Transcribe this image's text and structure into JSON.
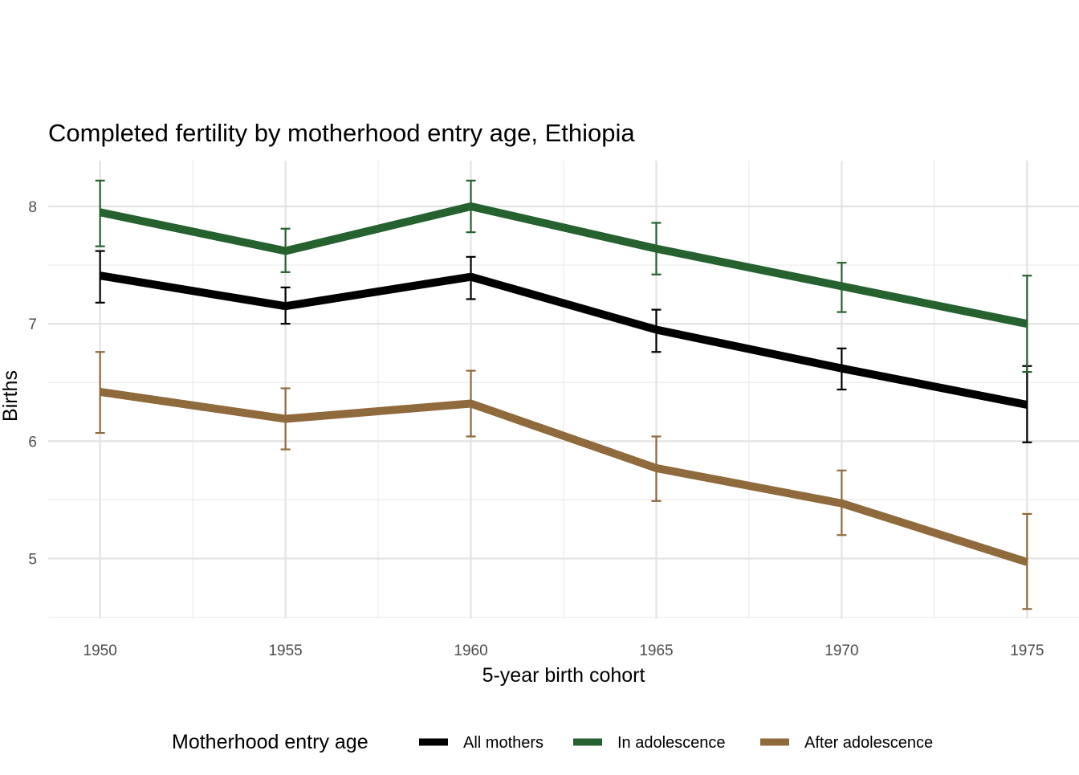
{
  "chart_data": {
    "type": "line",
    "title": "Completed fertility by motherhood entry age,  Ethiopia",
    "xlabel": "5-year birth cohort",
    "ylabel": "Births",
    "x": [
      1950,
      1955,
      1960,
      1965,
      1970,
      1975
    ],
    "x_ticks": [
      "1950",
      "1955",
      "1960",
      "1965",
      "1970",
      "1975"
    ],
    "y_ticks": [
      "5",
      "6",
      "7",
      "8"
    ],
    "xlim": [
      1948.6,
      1976.4
    ],
    "ylim": [
      4.49,
      8.39
    ],
    "grid": true,
    "legend": {
      "title": "Motherhood entry age",
      "position": "bottom"
    },
    "series": [
      {
        "name": "All mothers",
        "color": "#000000",
        "values": [
          7.41,
          7.15,
          7.4,
          6.95,
          6.62,
          6.31
        ],
        "lower": [
          7.18,
          7.0,
          7.21,
          6.76,
          6.44,
          5.99
        ],
        "upper": [
          7.62,
          7.31,
          7.57,
          7.12,
          6.79,
          6.64
        ]
      },
      {
        "name": "In adolescence",
        "color": "#26622f",
        "values": [
          7.95,
          7.62,
          8.0,
          7.64,
          7.32,
          7.0
        ],
        "lower": [
          7.66,
          7.44,
          7.78,
          7.42,
          7.1,
          6.59
        ],
        "upper": [
          8.22,
          7.81,
          8.22,
          7.86,
          7.52,
          7.41
        ]
      },
      {
        "name": "After adolescence",
        "color": "#8f6a3c",
        "values": [
          6.42,
          6.19,
          6.32,
          5.77,
          5.47,
          4.97
        ],
        "lower": [
          6.07,
          5.93,
          6.04,
          5.49,
          5.2,
          4.57
        ],
        "upper": [
          6.76,
          6.45,
          6.6,
          6.04,
          5.75,
          5.38
        ]
      }
    ]
  }
}
